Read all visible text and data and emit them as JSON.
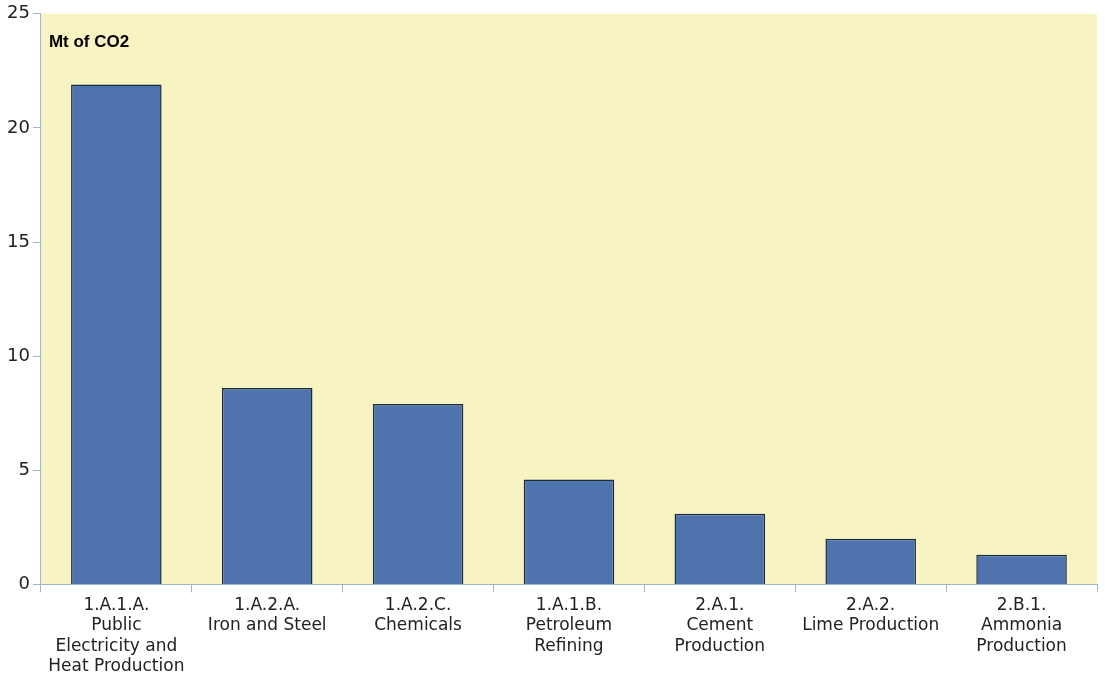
{
  "chart_data": {
    "type": "bar",
    "ylabel": "Mt of CO2",
    "categories": [
      "1.A.1.A. Public Electricity and Heat Production",
      "1.A.2.A. Iron and Steel",
      "1.A.2.C. Chemicals",
      "1.A.1.B. Petroleum Refining",
      "2.A.1. Cement Production",
      "2.A.2. Lime Production",
      "2.B.1. Ammonia Production"
    ],
    "values": [
      21.9,
      8.6,
      7.9,
      4.6,
      3.1,
      2.0,
      1.3
    ],
    "color": "#4f74ad",
    "ylim": [
      0,
      25
    ],
    "yticks": [
      0,
      5,
      10,
      15,
      20,
      25
    ],
    "grid": false,
    "legend": false
  }
}
